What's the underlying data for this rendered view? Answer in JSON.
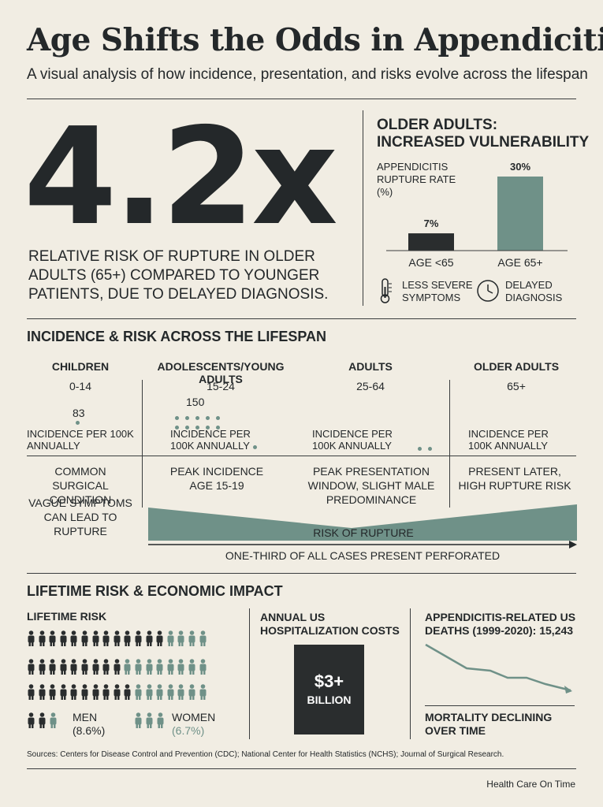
{
  "header": {
    "title": "Age Shifts the Odds in Appendicitis",
    "subtitle": "A visual analysis of how incidence, presentation, and risks evolve across the lifespan"
  },
  "hero": {
    "value": "4.2x",
    "description": "RELATIVE RISK OF RUPTURE IN OLDER ADULTS (65+) COMPARED TO YOUNGER PATIENTS, DUE TO DELAYED DIAGNOSIS."
  },
  "older_adults": {
    "heading_line1": "OLDER ADULTS:",
    "heading_line2": "INCREASED VULNERABILITY",
    "chart_label": "APPENDICITIS RUPTURE RATE (%)",
    "factors": [
      {
        "icon": "thermometer-icon",
        "label": "LESS SEVERE SYMPTOMS"
      },
      {
        "icon": "clock-icon",
        "label": "DELAYED DIAGNOSIS"
      }
    ]
  },
  "chart_data": {
    "type": "bar",
    "categories": [
      "AGE <65",
      "AGE 65+"
    ],
    "values": [
      7,
      30
    ],
    "data_labels": [
      "7%",
      "30%"
    ],
    "title": "APPENDICITIS RUPTURE RATE (%)",
    "ylim": [
      0,
      30
    ],
    "colors": [
      "#2a2d2e",
      "#6f9188"
    ]
  },
  "lifespan": {
    "heading": "INCIDENCE & RISK ACROSS THE LIFESPAN",
    "groups": [
      {
        "name": "CHILDREN",
        "range": "0-14",
        "value": "83",
        "incidence": "INCIDENCE PER 100k ANNUALLY",
        "desc1": "COMMON SURGICAL CONDITION",
        "desc2": "VAGUE SYMPTOMS CAN LEAD TO RUPTURE"
      },
      {
        "name": "ADOLESCENTS/YOUNG ADULTS",
        "range": "15-24",
        "value": "150",
        "incidence": "INCIDENCE PER 100k ANNUALLY",
        "desc1": "PEAK INCIDENCE AGE 15-19"
      },
      {
        "name": "ADULTS",
        "range": "25-64",
        "incidence": "INCIDENCE PER 100k ANNUALLY",
        "desc1": "PEAK PRESENTATION WINDOW, SLIGHT MALE PREDOMINANCE"
      },
      {
        "name": "OLDER ADULTS",
        "range": "65+",
        "incidence": "INCIDENCE PER 100k ANNUALLY",
        "desc1": "PRESENT LATER, HIGH RUPTURE RISK"
      }
    ],
    "rupture_label": "RISK OF RUPTURE",
    "axis_note": "ONE-THIRD OF ALL CASES PRESENT PERFORATED",
    "band_color": "#6f9188"
  },
  "economic": {
    "heading": "LIFETIME RISK & ECONOMIC IMPACT",
    "lifetime": {
      "label": "LIFETIME RISK",
      "men_label": "MEN",
      "men_value": "(8.6%)",
      "women_label": "WOMEN",
      "women_value": "(6.7%)"
    },
    "costs": {
      "label": "ANNUAL US HOSPITALIZATION COSTS",
      "value": "$3+",
      "unit": "BILLION"
    },
    "deaths": {
      "label": "APPENDICITIS-RELATED US DEATHS (1999-2020): 15,243",
      "caption": "MORTALITY DECLINING OVER TIME"
    }
  },
  "footer": {
    "sources": "Sources: Centers for Disease Control and Prevention (CDC); National Center for Health Statistics (NCHS); Journal of Surgical Research.",
    "brand": "Health Care On Time"
  }
}
